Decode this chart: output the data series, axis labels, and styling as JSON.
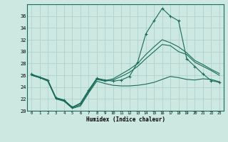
{
  "xlabel": "Humidex (Indice chaleur)",
  "bg_color": "#cce8e0",
  "line_color": "#1a6b5a",
  "grid_color": "#a8cfc8",
  "xlim": [
    -0.5,
    23.5
  ],
  "ylim": [
    20,
    38
  ],
  "yticks": [
    20,
    22,
    24,
    26,
    28,
    30,
    32,
    34,
    36
  ],
  "xticks": [
    0,
    1,
    2,
    3,
    4,
    5,
    6,
    7,
    8,
    9,
    10,
    11,
    12,
    13,
    14,
    15,
    16,
    17,
    18,
    19,
    20,
    21,
    22,
    23
  ],
  "line1_x": [
    0,
    1,
    2,
    3,
    4,
    5,
    6,
    7,
    8,
    9,
    10,
    11,
    12,
    13,
    14,
    15,
    16,
    17,
    18,
    19,
    20,
    21,
    22,
    23
  ],
  "line1_y": [
    26.2,
    25.7,
    25.2,
    22.2,
    21.8,
    20.6,
    21.3,
    23.5,
    25.5,
    25.2,
    25.0,
    25.2,
    25.8,
    28.2,
    33.0,
    35.2,
    37.3,
    36.0,
    35.2,
    28.8,
    27.5,
    26.2,
    25.1,
    24.8
  ],
  "line2_x": [
    0,
    1,
    2,
    3,
    4,
    5,
    6,
    7,
    8,
    9,
    10,
    11,
    12,
    13,
    14,
    15,
    16,
    17,
    18,
    19,
    20,
    21,
    22,
    23
  ],
  "line2_y": [
    26.0,
    25.6,
    25.1,
    22.1,
    21.7,
    20.5,
    21.0,
    23.2,
    25.3,
    25.0,
    25.2,
    25.8,
    26.5,
    27.5,
    28.8,
    30.0,
    31.2,
    31.0,
    30.0,
    29.5,
    28.2,
    27.5,
    26.8,
    26.0
  ],
  "line3_x": [
    0,
    1,
    2,
    3,
    4,
    5,
    6,
    7,
    8,
    9,
    10,
    11,
    12,
    13,
    14,
    15,
    16,
    17,
    18,
    19,
    20,
    21,
    22,
    23
  ],
  "line3_y": [
    26.1,
    25.7,
    25.2,
    22.2,
    21.8,
    20.6,
    21.2,
    23.4,
    25.4,
    25.1,
    25.4,
    26.2,
    27.0,
    28.0,
    29.5,
    30.8,
    32.0,
    31.5,
    30.8,
    29.8,
    28.5,
    27.8,
    27.0,
    26.3
  ],
  "line4_x": [
    0,
    1,
    2,
    3,
    4,
    5,
    6,
    7,
    8,
    9,
    10,
    11,
    12,
    13,
    14,
    15,
    16,
    17,
    18,
    19,
    20,
    21,
    22,
    23
  ],
  "line4_y": [
    26.0,
    25.6,
    25.0,
    22.0,
    21.6,
    20.4,
    20.8,
    23.0,
    25.0,
    24.6,
    24.3,
    24.2,
    24.2,
    24.3,
    24.5,
    24.8,
    25.3,
    25.8,
    25.6,
    25.3,
    25.2,
    25.4,
    25.3,
    24.9
  ]
}
